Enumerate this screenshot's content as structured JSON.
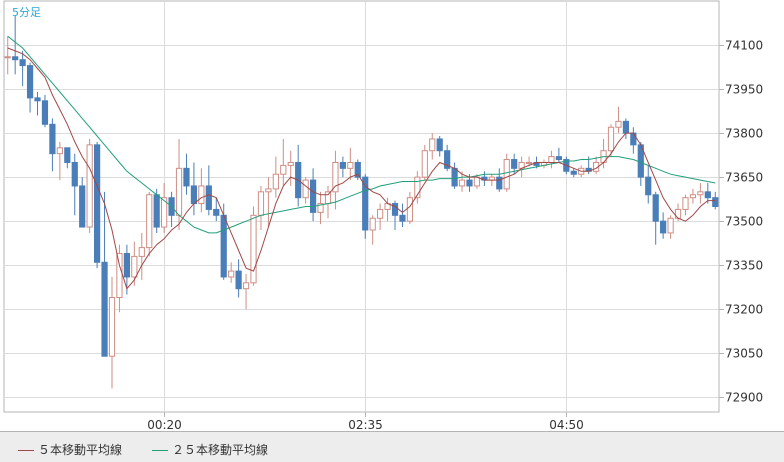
{
  "chart_data": {
    "type": "candlestick",
    "timeframe_label": "5分足",
    "ylim": [
      72850,
      74250
    ],
    "yticks": [
      74100,
      73950,
      73800,
      73650,
      73500,
      73350,
      73200,
      73050,
      72900
    ],
    "xticks": [
      {
        "label": "00:20",
        "index": 21
      },
      {
        "label": "02:35",
        "index": 48
      },
      {
        "label": "04:50",
        "index": 75
      }
    ],
    "grid": true,
    "legend_position": "bottom-left",
    "colors": {
      "up": "#cf8e84",
      "down": "#4a7eb8",
      "ma5": "#a04848",
      "ma25": "#20a07a",
      "grid": "#dcdcdc",
      "axis": "#b4b4b4"
    },
    "series": [
      {
        "name": "５本移動平均線",
        "color": "#a04848"
      },
      {
        "name": "２５本移動平均線",
        "color": "#20a07a"
      }
    ],
    "ohlc": [
      [
        74060,
        74130,
        74000,
        74060
      ],
      [
        74060,
        74200,
        74000,
        74050
      ],
      [
        74050,
        74080,
        73960,
        74030
      ],
      [
        74030,
        74040,
        73870,
        73920
      ],
      [
        73920,
        73940,
        73860,
        73910
      ],
      [
        73910,
        73930,
        73820,
        73830
      ],
      [
        73830,
        73850,
        73670,
        73730
      ],
      [
        73730,
        73770,
        73640,
        73750
      ],
      [
        73750,
        73750,
        73680,
        73700
      ],
      [
        73700,
        73730,
        73520,
        73620
      ],
      [
        73620,
        73650,
        73480,
        73480
      ],
      [
        73480,
        73780,
        73460,
        73760
      ],
      [
        73760,
        73770,
        73340,
        73360
      ],
      [
        73360,
        73600,
        73040,
        73040
      ],
      [
        73040,
        73310,
        72930,
        73240
      ],
      [
        73240,
        73420,
        73190,
        73390
      ],
      [
        73390,
        73420,
        73250,
        73310
      ],
      [
        73310,
        73430,
        73280,
        73380
      ],
      [
        73380,
        73460,
        73300,
        73410
      ],
      [
        73410,
        73600,
        73380,
        73590
      ],
      [
        73590,
        73610,
        73460,
        73480
      ],
      [
        73480,
        73630,
        73460,
        73580
      ],
      [
        73580,
        73600,
        73480,
        73520
      ],
      [
        73520,
        73780,
        73470,
        73680
      ],
      [
        73680,
        73730,
        73590,
        73620
      ],
      [
        73620,
        73700,
        73520,
        73560
      ],
      [
        73560,
        73680,
        73530,
        73620
      ],
      [
        73620,
        73690,
        73520,
        73540
      ],
      [
        73540,
        73580,
        73500,
        73520
      ],
      [
        73520,
        73560,
        73300,
        73310
      ],
      [
        73310,
        73360,
        73290,
        73330
      ],
      [
        73330,
        73370,
        73240,
        73270
      ],
      [
        73270,
        73320,
        73200,
        73290
      ],
      [
        73290,
        73550,
        73280,
        73520
      ],
      [
        73520,
        73620,
        73470,
        73600
      ],
      [
        73600,
        73650,
        73480,
        73610
      ],
      [
        73610,
        73720,
        73580,
        73660
      ],
      [
        73660,
        73780,
        73620,
        73690
      ],
      [
        73690,
        73740,
        73620,
        73700
      ],
      [
        73700,
        73760,
        73550,
        73580
      ],
      [
        73580,
        73650,
        73560,
        73640
      ],
      [
        73640,
        73680,
        73500,
        73530
      ],
      [
        73530,
        73600,
        73490,
        73560
      ],
      [
        73560,
        73620,
        73510,
        73600
      ],
      [
        73600,
        73740,
        73540,
        73700
      ],
      [
        73700,
        73720,
        73650,
        73680
      ],
      [
        73680,
        73750,
        73640,
        73700
      ],
      [
        73700,
        73710,
        73640,
        73650
      ],
      [
        73650,
        73660,
        73440,
        73470
      ],
      [
        73470,
        73520,
        73420,
        73510
      ],
      [
        73510,
        73560,
        73470,
        73540
      ],
      [
        73540,
        73580,
        73500,
        73560
      ],
      [
        73560,
        73570,
        73470,
        73520
      ],
      [
        73520,
        73560,
        73480,
        73500
      ],
      [
        73500,
        73600,
        73490,
        73580
      ],
      [
        73580,
        73670,
        73560,
        73650
      ],
      [
        73650,
        73760,
        73640,
        73740
      ],
      [
        73740,
        73800,
        73710,
        73780
      ],
      [
        73780,
        73790,
        73720,
        73740
      ],
      [
        73740,
        73760,
        73670,
        73680
      ],
      [
        73680,
        73700,
        73610,
        73620
      ],
      [
        73620,
        73670,
        73600,
        73640
      ],
      [
        73640,
        73660,
        73600,
        73620
      ],
      [
        73620,
        73660,
        73610,
        73650
      ],
      [
        73650,
        73670,
        73620,
        73640
      ],
      [
        73640,
        73660,
        73620,
        73650
      ],
      [
        73650,
        73680,
        73600,
        73610
      ],
      [
        73610,
        73730,
        73600,
        73710
      ],
      [
        73710,
        73730,
        73660,
        73680
      ],
      [
        73680,
        73720,
        73650,
        73700
      ],
      [
        73700,
        73720,
        73690,
        73700
      ],
      [
        73700,
        73720,
        73680,
        73690
      ],
      [
        73690,
        73710,
        73680,
        73700
      ],
      [
        73700,
        73740,
        73680,
        73720
      ],
      [
        73720,
        73750,
        73700,
        73710
      ],
      [
        73710,
        73720,
        73660,
        73670
      ],
      [
        73670,
        73680,
        73650,
        73660
      ],
      [
        73660,
        73690,
        73650,
        73680
      ],
      [
        73680,
        73720,
        73660,
        73670
      ],
      [
        73670,
        73720,
        73660,
        73700
      ],
      [
        73700,
        73780,
        73680,
        73740
      ],
      [
        73740,
        73830,
        73720,
        73820
      ],
      [
        73820,
        73890,
        73800,
        73840
      ],
      [
        73840,
        73850,
        73780,
        73800
      ],
      [
        73800,
        73820,
        73730,
        73760
      ],
      [
        73760,
        73770,
        73620,
        73650
      ],
      [
        73650,
        73690,
        73560,
        73590
      ],
      [
        73590,
        73600,
        73420,
        73500
      ],
      [
        73500,
        73530,
        73440,
        73460
      ],
      [
        73460,
        73520,
        73440,
        73510
      ],
      [
        73510,
        73560,
        73500,
        73540
      ],
      [
        73540,
        73590,
        73520,
        73580
      ],
      [
        73580,
        73610,
        73560,
        73590
      ],
      [
        73590,
        73630,
        73560,
        73600
      ],
      [
        73600,
        73630,
        73560,
        73580
      ],
      [
        73580,
        73600,
        73540,
        73550
      ]
    ],
    "ma5": [
      74090,
      74080,
      74070,
      74050,
      74020,
      73990,
      73930,
      73880,
      73830,
      73770,
      73720,
      73680,
      73620,
      73560,
      73470,
      73350,
      73270,
      73300,
      73350,
      73390,
      73420,
      73440,
      73470,
      73490,
      73530,
      73560,
      73580,
      73590,
      73580,
      73520,
      73460,
      73400,
      73340,
      73330,
      73400,
      73480,
      73560,
      73620,
      73650,
      73640,
      73620,
      73600,
      73590,
      73590,
      73620,
      73630,
      73650,
      73660,
      73620,
      73600,
      73590,
      73560,
      73550,
      73530,
      73550,
      73590,
      73630,
      73670,
      73700,
      73690,
      73680,
      73660,
      73650,
      73650,
      73640,
      73640,
      73640,
      73650,
      73660,
      73680,
      73690,
      73700,
      73700,
      73700,
      73700,
      73690,
      73680,
      73670,
      73670,
      73680,
      73700,
      73730,
      73770,
      73800,
      73800,
      73760,
      73700,
      73640,
      73580,
      73540,
      73510,
      73500,
      73520,
      73550,
      73570,
      73570
    ],
    "ma25": [
      74130,
      74110,
      74090,
      74060,
      74030,
      74000,
      73970,
      73940,
      73910,
      73880,
      73850,
      73820,
      73790,
      73760,
      73730,
      73700,
      73670,
      73650,
      73630,
      73610,
      73590,
      73570,
      73550,
      73520,
      73500,
      73480,
      73470,
      73460,
      73460,
      73470,
      73480,
      73490,
      73500,
      73510,
      73520,
      73525,
      73530,
      73535,
      73540,
      73545,
      73550,
      73550,
      73555,
      73560,
      73565,
      73575,
      73585,
      73595,
      73605,
      73610,
      73620,
      73625,
      73630,
      73635,
      73635,
      73635,
      73640,
      73640,
      73645,
      73645,
      73645,
      73650,
      73650,
      73655,
      73660,
      73660,
      73660,
      73665,
      73670,
      73675,
      73680,
      73685,
      73690,
      73695,
      73700,
      73705,
      73705,
      73710,
      73710,
      73715,
      73720,
      73720,
      73720,
      73715,
      73710,
      73700,
      73690,
      73680,
      73670,
      73660,
      73655,
      73650,
      73645,
      73640,
      73635,
      73630
    ]
  }
}
